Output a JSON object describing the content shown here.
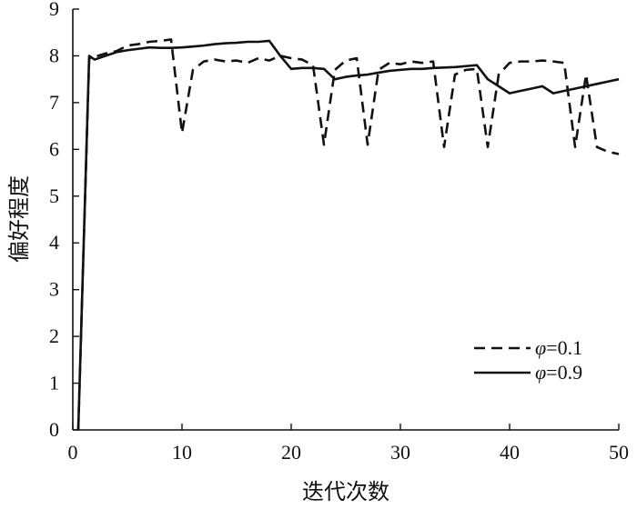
{
  "chart_data": {
    "type": "line",
    "title": "",
    "xlabel": "迭代次数",
    "ylabel": "偏好程度",
    "xlim": [
      0,
      50
    ],
    "ylim": [
      0,
      9
    ],
    "xticks": [
      0,
      10,
      20,
      30,
      40,
      50
    ],
    "yticks": [
      0,
      1,
      2,
      3,
      4,
      5,
      6,
      7,
      8,
      9
    ],
    "grid": false,
    "legend_position": "bottom-right",
    "series": [
      {
        "name": "φ=0.1",
        "legend_symbol": "φ",
        "legend_value": "=0.1",
        "style": "dashed",
        "color": "#111111",
        "x": [
          0.5,
          1.5,
          2,
          3,
          4,
          5,
          6,
          7,
          8,
          9,
          10,
          11,
          12,
          13,
          14,
          15,
          16,
          17,
          18,
          19,
          20,
          21,
          22,
          23,
          24,
          25,
          26,
          27,
          28,
          29,
          30,
          31,
          32,
          33,
          34,
          35,
          36,
          37,
          38,
          39,
          40,
          41,
          42,
          43,
          44,
          45,
          46,
          47,
          48,
          49,
          50
        ],
        "y": [
          0,
          7.95,
          7.98,
          8.05,
          8.1,
          8.22,
          8.25,
          8.3,
          8.32,
          8.35,
          6.35,
          7.7,
          7.88,
          7.92,
          7.88,
          7.9,
          7.85,
          7.95,
          7.9,
          8.0,
          7.95,
          7.92,
          7.8,
          6.1,
          7.7,
          7.9,
          7.95,
          6.1,
          7.7,
          7.85,
          7.82,
          7.88,
          7.85,
          7.88,
          6.05,
          7.6,
          7.7,
          7.72,
          6.05,
          7.6,
          7.85,
          7.88,
          7.88,
          7.9,
          7.88,
          7.85,
          6.05,
          7.6,
          6.05,
          5.95,
          5.9
        ]
      },
      {
        "name": "φ=0.9",
        "legend_symbol": "φ",
        "legend_value": "=0.9",
        "style": "solid",
        "color": "#111111",
        "x": [
          0.5,
          1.5,
          2,
          3,
          4,
          5,
          6,
          7,
          8,
          9,
          10,
          11,
          12,
          13,
          14,
          15,
          16,
          17,
          18,
          19,
          20,
          21,
          22,
          23,
          24,
          25,
          26,
          27,
          28,
          29,
          30,
          31,
          32,
          33,
          34,
          35,
          36,
          37,
          38,
          39,
          40,
          41,
          42,
          43,
          44,
          45,
          46,
          47,
          48,
          49,
          50
        ],
        "y": [
          0,
          8.0,
          7.92,
          8.0,
          8.08,
          8.12,
          8.15,
          8.18,
          8.17,
          8.17,
          8.18,
          8.2,
          8.22,
          8.25,
          8.27,
          8.28,
          8.3,
          8.3,
          8.32,
          8.0,
          7.72,
          7.74,
          7.74,
          7.72,
          7.5,
          7.55,
          7.58,
          7.6,
          7.64,
          7.68,
          7.7,
          7.72,
          7.72,
          7.74,
          7.75,
          7.76,
          7.78,
          7.8,
          7.5,
          7.35,
          7.2,
          7.25,
          7.3,
          7.35,
          7.2,
          7.25,
          7.3,
          7.35,
          7.4,
          7.45,
          7.5
        ]
      }
    ]
  }
}
